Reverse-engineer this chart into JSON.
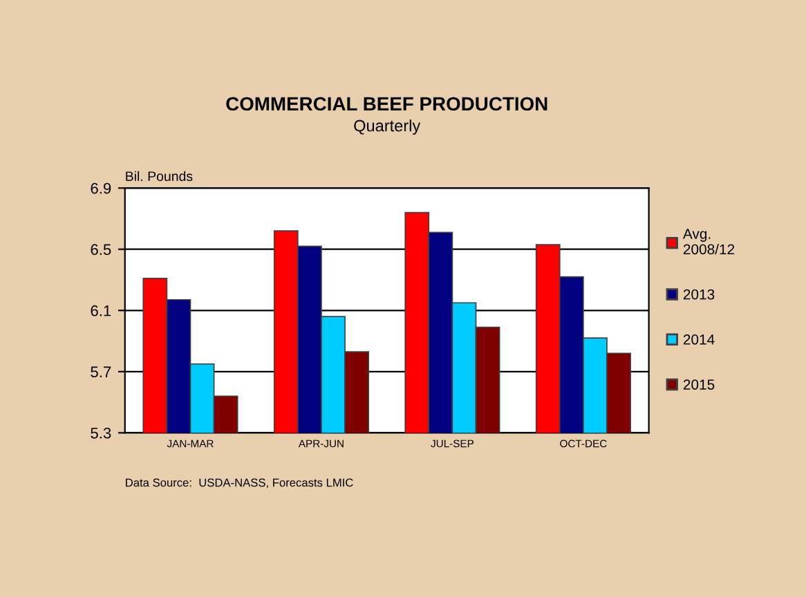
{
  "chart_data": {
    "type": "bar",
    "title": "COMMERCIAL BEEF PRODUCTION",
    "subtitle": "Quarterly",
    "ylabel": "Bil. Pounds",
    "categories": [
      "JAN-MAR",
      "APR-JUN",
      "JUL-SEP",
      "OCT-DEC"
    ],
    "series": [
      {
        "name": "Avg.\n2008/12",
        "color": "#ff0000",
        "values": [
          6.31,
          6.62,
          6.74,
          6.53
        ]
      },
      {
        "name": "2013",
        "color": "#000080",
        "values": [
          6.17,
          6.52,
          6.61,
          6.32
        ]
      },
      {
        "name": "2014",
        "color": "#00ccff",
        "values": [
          5.75,
          6.06,
          6.15,
          5.92
        ]
      },
      {
        "name": "2015",
        "color": "#800000",
        "values": [
          5.54,
          5.83,
          5.99,
          5.82
        ]
      }
    ],
    "ylim": [
      5.3,
      6.9
    ],
    "yticks": [
      5.3,
      5.7,
      6.1,
      6.5,
      6.9
    ],
    "grid": "y",
    "legend": "right",
    "annotations": [
      "Data Source:  USDA-NASS, Forecasts LMIC"
    ]
  }
}
